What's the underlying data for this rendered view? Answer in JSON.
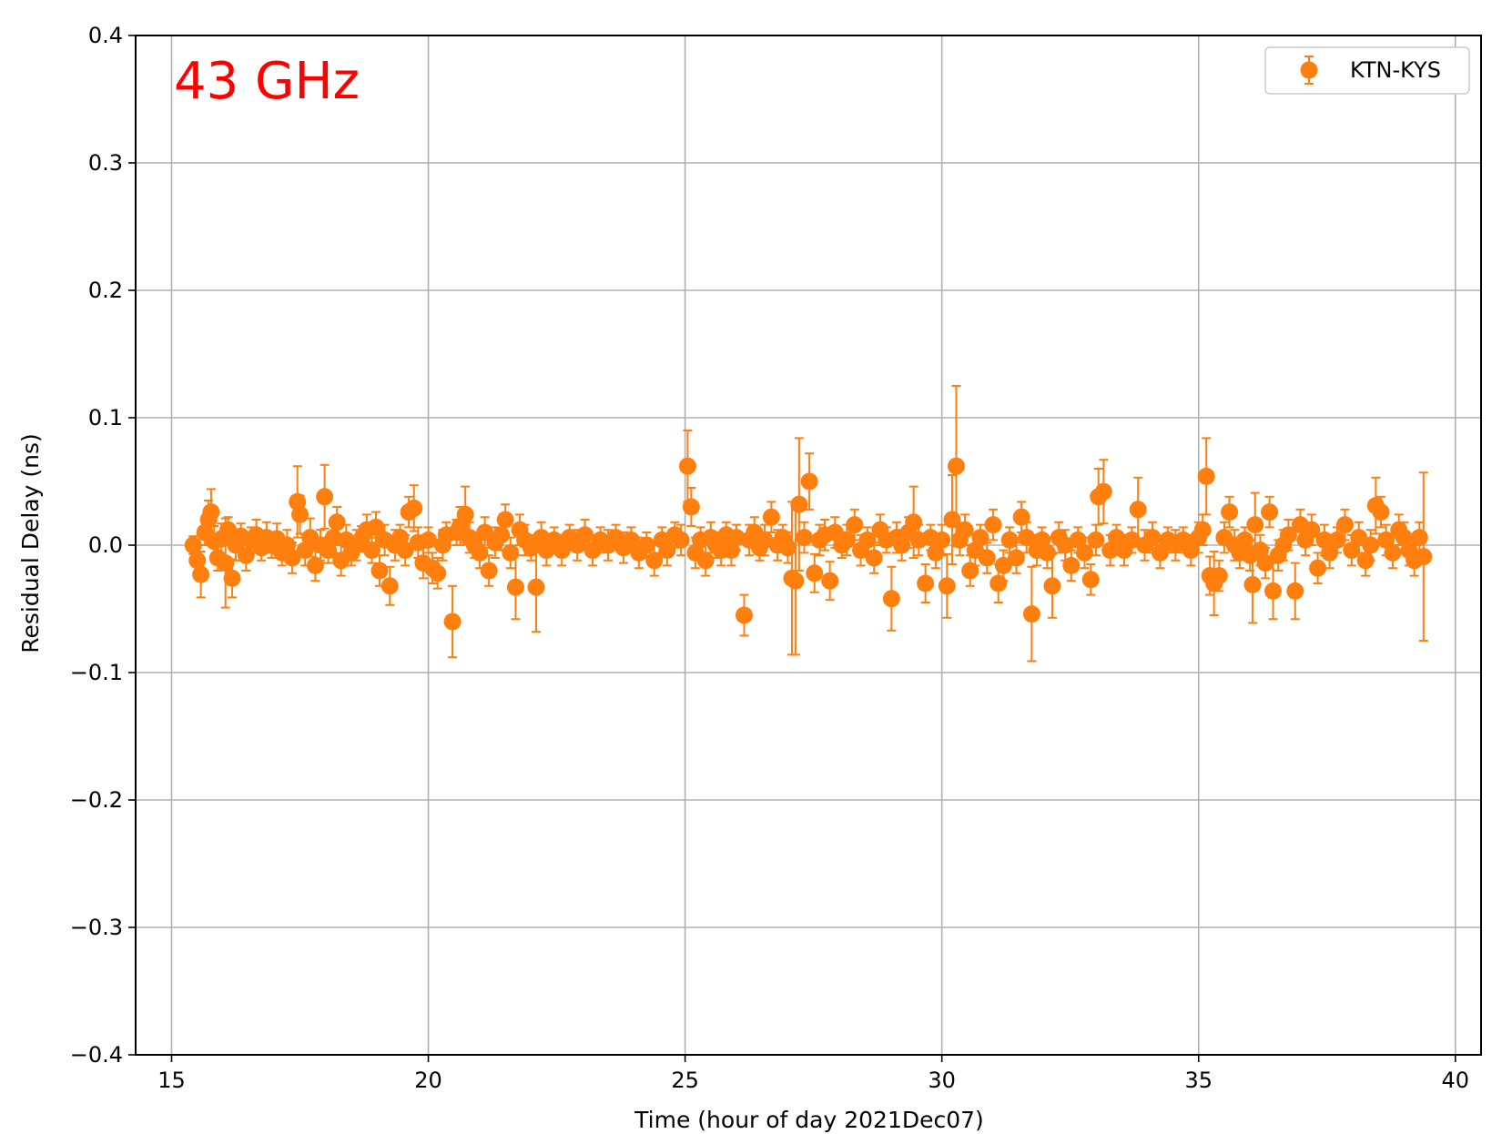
{
  "chart_data": {
    "type": "scatter",
    "annotation": "43 GHz",
    "xlabel": "Time (hour of day 2021Dec07)",
    "ylabel": "Residual Delay (ns)",
    "xlim": [
      14.3,
      40.5
    ],
    "ylim": [
      -0.4,
      0.4
    ],
    "xticks": [
      15,
      20,
      25,
      30,
      35,
      40
    ],
    "xtick_labels": [
      "15",
      "20",
      "25",
      "30",
      "35",
      "40"
    ],
    "yticks": [
      -0.4,
      -0.3,
      -0.2,
      -0.1,
      0.0,
      0.1,
      0.2,
      0.3,
      0.4
    ],
    "ytick_labels": [
      "−0.4",
      "−0.3",
      "−0.2",
      "−0.1",
      "0.0",
      "0.1",
      "0.2",
      "0.3",
      "0.4"
    ],
    "grid": true,
    "legend_position": "top-right",
    "series": [
      {
        "name": "KTN-KYS",
        "color": "#ff7f0e",
        "marker": "circle-with-errorbars",
        "points": [
          [
            15.42,
            0.0,
            0.007
          ],
          [
            15.5,
            -0.012,
            0.01
          ],
          [
            15.57,
            -0.023,
            0.018
          ],
          [
            15.65,
            0.01,
            0.01
          ],
          [
            15.72,
            0.02,
            0.015
          ],
          [
            15.77,
            0.026,
            0.018
          ],
          [
            15.83,
            0.003,
            0.012
          ],
          [
            15.9,
            -0.01,
            0.01
          ],
          [
            15.97,
            0.005,
            0.012
          ],
          [
            16.05,
            -0.014,
            0.035
          ],
          [
            16.1,
            0.012,
            0.01
          ],
          [
            16.18,
            -0.026,
            0.015
          ],
          [
            16.25,
            0.0,
            0.012
          ],
          [
            16.35,
            0.007,
            0.01
          ],
          [
            16.45,
            -0.008,
            0.012
          ],
          [
            16.55,
            0.004,
            0.01
          ],
          [
            16.65,
            0.008,
            0.012
          ],
          [
            16.75,
            -0.002,
            0.01
          ],
          [
            16.85,
            0.006,
            0.012
          ],
          [
            16.95,
            0.0,
            0.01
          ],
          [
            17.05,
            0.005,
            0.012
          ],
          [
            17.15,
            -0.006,
            0.01
          ],
          [
            17.25,
            0.0,
            0.012
          ],
          [
            17.35,
            -0.01,
            0.012
          ],
          [
            17.45,
            0.034,
            0.028
          ],
          [
            17.5,
            0.024,
            0.015
          ],
          [
            17.6,
            -0.004,
            0.012
          ],
          [
            17.7,
            0.006,
            0.015
          ],
          [
            17.8,
            -0.016,
            0.012
          ],
          [
            17.9,
            0.0,
            0.012
          ],
          [
            17.98,
            0.038,
            0.025
          ],
          [
            18.05,
            -0.004,
            0.01
          ],
          [
            18.15,
            0.006,
            0.012
          ],
          [
            18.22,
            0.018,
            0.012
          ],
          [
            18.3,
            -0.012,
            0.012
          ],
          [
            18.4,
            0.004,
            0.012
          ],
          [
            18.5,
            -0.006,
            0.01
          ],
          [
            18.6,
            0.0,
            0.012
          ],
          [
            18.7,
            0.005,
            0.01
          ],
          [
            18.8,
            0.012,
            0.012
          ],
          [
            18.9,
            -0.004,
            0.01
          ],
          [
            18.98,
            0.014,
            0.012
          ],
          [
            19.05,
            -0.02,
            0.012
          ],
          [
            19.15,
            0.004,
            0.012
          ],
          [
            19.25,
            -0.032,
            0.015
          ],
          [
            19.35,
            0.0,
            0.012
          ],
          [
            19.45,
            0.006,
            0.01
          ],
          [
            19.55,
            -0.004,
            0.012
          ],
          [
            19.62,
            0.026,
            0.012
          ],
          [
            19.72,
            0.029,
            0.018
          ],
          [
            19.8,
            0.002,
            0.012
          ],
          [
            19.9,
            -0.014,
            0.012
          ],
          [
            20.0,
            0.004,
            0.01
          ],
          [
            20.08,
            -0.018,
            0.012
          ],
          [
            20.18,
            -0.022,
            0.012
          ],
          [
            20.28,
            0.0,
            0.012
          ],
          [
            20.35,
            0.008,
            0.01
          ],
          [
            20.47,
            -0.06,
            0.028
          ],
          [
            20.55,
            0.01,
            0.01
          ],
          [
            20.62,
            0.015,
            0.015
          ],
          [
            20.72,
            0.024,
            0.022
          ],
          [
            20.8,
            0.006,
            0.012
          ],
          [
            20.9,
            0.0,
            0.01
          ],
          [
            21.0,
            -0.006,
            0.012
          ],
          [
            21.1,
            0.01,
            0.012
          ],
          [
            21.18,
            -0.02,
            0.012
          ],
          [
            21.3,
            0.002,
            0.012
          ],
          [
            21.42,
            0.008,
            0.012
          ],
          [
            21.5,
            0.02,
            0.012
          ],
          [
            21.6,
            -0.006,
            0.012
          ],
          [
            21.7,
            -0.033,
            0.025
          ],
          [
            21.78,
            0.012,
            0.012
          ],
          [
            21.88,
            0.004,
            0.012
          ],
          [
            22.0,
            -0.002,
            0.01
          ],
          [
            22.1,
            -0.033,
            0.035
          ],
          [
            22.2,
            0.006,
            0.012
          ],
          [
            22.3,
            -0.004,
            0.012
          ],
          [
            22.45,
            0.004,
            0.01
          ],
          [
            22.6,
            -0.004,
            0.012
          ],
          [
            22.75,
            0.006,
            0.01
          ],
          [
            22.9,
            0.0,
            0.012
          ],
          [
            23.05,
            0.008,
            0.012
          ],
          [
            23.2,
            -0.004,
            0.012
          ],
          [
            23.35,
            0.004,
            0.01
          ],
          [
            23.5,
            0.0,
            0.012
          ],
          [
            23.65,
            0.006,
            0.01
          ],
          [
            23.8,
            -0.002,
            0.012
          ],
          [
            23.95,
            0.004,
            0.01
          ],
          [
            24.1,
            -0.006,
            0.012
          ],
          [
            24.25,
            0.0,
            0.01
          ],
          [
            24.4,
            -0.012,
            0.012
          ],
          [
            24.55,
            0.004,
            0.01
          ],
          [
            24.65,
            -0.004,
            0.012
          ],
          [
            24.8,
            0.008,
            0.01
          ],
          [
            24.92,
            0.004,
            0.012
          ],
          [
            25.05,
            0.062,
            0.028
          ],
          [
            25.12,
            0.03,
            0.015
          ],
          [
            25.2,
            -0.006,
            0.012
          ],
          [
            25.3,
            0.004,
            0.01
          ],
          [
            25.4,
            -0.012,
            0.012
          ],
          [
            25.5,
            0.006,
            0.012
          ],
          [
            25.6,
            0.0,
            0.01
          ],
          [
            25.7,
            -0.004,
            0.012
          ],
          [
            25.8,
            0.008,
            0.01
          ],
          [
            25.9,
            -0.004,
            0.012
          ],
          [
            26.0,
            0.006,
            0.01
          ],
          [
            26.15,
            -0.055,
            0.016
          ],
          [
            26.25,
            0.004,
            0.012
          ],
          [
            26.35,
            0.01,
            0.012
          ],
          [
            26.45,
            -0.002,
            0.01
          ],
          [
            26.55,
            0.004,
            0.012
          ],
          [
            26.68,
            0.022,
            0.012
          ],
          [
            26.8,
            0.0,
            0.012
          ],
          [
            26.9,
            0.006,
            0.01
          ],
          [
            27.0,
            -0.002,
            0.012
          ],
          [
            27.08,
            -0.026,
            0.06
          ],
          [
            27.15,
            -0.028,
            0.058
          ],
          [
            27.22,
            0.032,
            0.052
          ],
          [
            27.32,
            0.006,
            0.012
          ],
          [
            27.42,
            0.05,
            0.022
          ],
          [
            27.52,
            -0.022,
            0.015
          ],
          [
            27.62,
            0.004,
            0.012
          ],
          [
            27.72,
            0.008,
            0.012
          ],
          [
            27.82,
            -0.028,
            0.015
          ],
          [
            27.92,
            0.01,
            0.012
          ],
          [
            28.05,
            0.0,
            0.01
          ],
          [
            28.15,
            0.004,
            0.012
          ],
          [
            28.3,
            0.016,
            0.012
          ],
          [
            28.42,
            -0.004,
            0.012
          ],
          [
            28.55,
            0.004,
            0.01
          ],
          [
            28.68,
            -0.01,
            0.012
          ],
          [
            28.8,
            0.012,
            0.012
          ],
          [
            28.92,
            0.004,
            0.01
          ],
          [
            29.02,
            -0.042,
            0.025
          ],
          [
            29.12,
            0.006,
            0.012
          ],
          [
            29.22,
            0.0,
            0.012
          ],
          [
            29.35,
            0.01,
            0.012
          ],
          [
            29.45,
            0.018,
            0.028
          ],
          [
            29.55,
            0.004,
            0.012
          ],
          [
            29.68,
            -0.03,
            0.015
          ],
          [
            29.78,
            0.006,
            0.01
          ],
          [
            29.88,
            -0.006,
            0.012
          ],
          [
            30.0,
            0.004,
            0.012
          ],
          [
            30.1,
            -0.032,
            0.025
          ],
          [
            30.2,
            0.02,
            0.035
          ],
          [
            30.28,
            0.062,
            0.063
          ],
          [
            30.35,
            0.004,
            0.012
          ],
          [
            30.45,
            0.012,
            0.012
          ],
          [
            30.55,
            -0.02,
            0.012
          ],
          [
            30.65,
            -0.004,
            0.012
          ],
          [
            30.75,
            0.006,
            0.01
          ],
          [
            30.88,
            -0.01,
            0.012
          ],
          [
            31.0,
            0.016,
            0.012
          ],
          [
            31.1,
            -0.03,
            0.015
          ],
          [
            31.2,
            -0.016,
            0.012
          ],
          [
            31.32,
            0.004,
            0.01
          ],
          [
            31.45,
            -0.01,
            0.012
          ],
          [
            31.55,
            0.022,
            0.012
          ],
          [
            31.65,
            0.006,
            0.012
          ],
          [
            31.75,
            -0.054,
            0.037
          ],
          [
            31.85,
            -0.004,
            0.012
          ],
          [
            31.95,
            0.004,
            0.01
          ],
          [
            32.05,
            -0.006,
            0.012
          ],
          [
            32.15,
            -0.032,
            0.025
          ],
          [
            32.28,
            0.006,
            0.012
          ],
          [
            32.4,
            0.0,
            0.012
          ],
          [
            32.52,
            -0.016,
            0.012
          ],
          [
            32.65,
            0.004,
            0.01
          ],
          [
            32.78,
            -0.006,
            0.012
          ],
          [
            32.9,
            -0.027,
            0.012
          ],
          [
            33.0,
            0.004,
            0.012
          ],
          [
            33.05,
            0.038,
            0.022
          ],
          [
            33.15,
            0.042,
            0.025
          ],
          [
            33.28,
            -0.004,
            0.012
          ],
          [
            33.4,
            0.006,
            0.01
          ],
          [
            33.55,
            -0.004,
            0.012
          ],
          [
            33.7,
            0.004,
            0.01
          ],
          [
            33.82,
            0.028,
            0.025
          ],
          [
            33.95,
            0.0,
            0.012
          ],
          [
            34.1,
            0.006,
            0.012
          ],
          [
            34.25,
            -0.006,
            0.012
          ],
          [
            34.4,
            0.004,
            0.01
          ],
          [
            34.55,
            0.0,
            0.012
          ],
          [
            34.7,
            0.004,
            0.01
          ],
          [
            34.85,
            -0.004,
            0.012
          ],
          [
            35.0,
            0.006,
            0.012
          ],
          [
            35.08,
            0.012,
            0.012
          ],
          [
            35.15,
            0.054,
            0.03
          ],
          [
            35.22,
            -0.024,
            0.015
          ],
          [
            35.3,
            -0.03,
            0.025
          ],
          [
            35.4,
            -0.024,
            0.012
          ],
          [
            35.5,
            0.006,
            0.012
          ],
          [
            35.6,
            0.026,
            0.012
          ],
          [
            35.7,
            0.0,
            0.012
          ],
          [
            35.8,
            -0.006,
            0.012
          ],
          [
            35.9,
            0.004,
            0.01
          ],
          [
            36.0,
            -0.008,
            0.012
          ],
          [
            36.05,
            -0.031,
            0.03
          ],
          [
            36.1,
            0.016,
            0.025
          ],
          [
            36.2,
            -0.004,
            0.012
          ],
          [
            36.3,
            -0.014,
            0.012
          ],
          [
            36.38,
            0.026,
            0.012
          ],
          [
            36.45,
            -0.036,
            0.022
          ],
          [
            36.55,
            -0.008,
            0.012
          ],
          [
            36.65,
            0.0,
            0.012
          ],
          [
            36.75,
            0.008,
            0.012
          ],
          [
            36.88,
            -0.036,
            0.022
          ],
          [
            36.98,
            0.016,
            0.012
          ],
          [
            37.08,
            0.004,
            0.012
          ],
          [
            37.2,
            0.012,
            0.012
          ],
          [
            37.32,
            -0.018,
            0.012
          ],
          [
            37.45,
            0.004,
            0.012
          ],
          [
            37.55,
            -0.006,
            0.012
          ],
          [
            37.7,
            0.004,
            0.01
          ],
          [
            37.85,
            0.016,
            0.012
          ],
          [
            37.98,
            -0.004,
            0.012
          ],
          [
            38.12,
            0.006,
            0.012
          ],
          [
            38.25,
            -0.012,
            0.012
          ],
          [
            38.35,
            0.0,
            0.012
          ],
          [
            38.45,
            0.031,
            0.022
          ],
          [
            38.55,
            0.026,
            0.012
          ],
          [
            38.65,
            0.004,
            0.012
          ],
          [
            38.78,
            -0.006,
            0.012
          ],
          [
            38.9,
            0.012,
            0.012
          ],
          [
            39.0,
            0.006,
            0.012
          ],
          [
            39.1,
            -0.004,
            0.012
          ],
          [
            39.2,
            -0.012,
            0.012
          ],
          [
            39.3,
            0.006,
            0.012
          ],
          [
            39.38,
            -0.009,
            0.066
          ]
        ]
      }
    ]
  }
}
